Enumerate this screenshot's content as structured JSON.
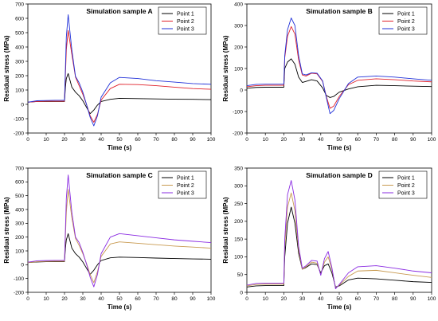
{
  "chart_data": [
    {
      "type": "line",
      "title": "Simulation sample A",
      "xlabel": "Time (s)",
      "ylabel": "Residual stress (MPa)",
      "xlim": [
        0,
        100
      ],
      "ylim": [
        -200,
        700
      ],
      "xticks": [
        "0",
        "10",
        "20",
        "30",
        "40",
        "50",
        "60",
        "70",
        "80",
        "90",
        "100"
      ],
      "yticks": [
        "-200",
        "-100",
        "0",
        "100",
        "200",
        "300",
        "400",
        "500",
        "600",
        "700"
      ],
      "legend_position": "top-right",
      "series": [
        {
          "name": "Point 1",
          "color": "#000000",
          "x": [
            0,
            5,
            10,
            15,
            20,
            20.5,
            21,
            22,
            24,
            26,
            28,
            30,
            32,
            34,
            36,
            38,
            40,
            45,
            50,
            60,
            70,
            80,
            90,
            100
          ],
          "y": [
            15,
            20,
            20,
            20,
            20,
            120,
            180,
            215,
            120,
            85,
            60,
            25,
            -20,
            -65,
            -40,
            -5,
            20,
            35,
            42,
            40,
            38,
            36,
            35,
            33
          ]
        },
        {
          "name": "Point 2",
          "color": "#e0202a",
          "x": [
            0,
            5,
            10,
            15,
            20,
            20.5,
            21,
            22,
            24,
            26,
            28,
            30,
            32,
            34,
            36,
            38,
            40,
            45,
            50,
            60,
            70,
            80,
            90,
            100
          ],
          "y": [
            15,
            20,
            22,
            22,
            22,
            200,
            380,
            515,
            350,
            190,
            130,
            70,
            0,
            -80,
            -125,
            -70,
            30,
            110,
            140,
            138,
            130,
            120,
            110,
            105
          ]
        },
        {
          "name": "Point 3",
          "color": "#2030d8",
          "x": [
            0,
            5,
            10,
            15,
            20,
            20.5,
            21,
            22,
            24,
            26,
            28,
            30,
            32,
            34,
            36,
            38,
            40,
            45,
            50,
            60,
            70,
            80,
            90,
            100
          ],
          "y": [
            15,
            25,
            27,
            28,
            28,
            250,
            470,
            625,
            380,
            195,
            150,
            85,
            0,
            -90,
            -150,
            -80,
            50,
            150,
            188,
            180,
            165,
            155,
            145,
            140
          ]
        }
      ]
    },
    {
      "type": "line",
      "title": "Simulation sample B",
      "xlabel": "Time (s)",
      "ylabel": "Residual stress (MPa)",
      "xlim": [
        0,
        100
      ],
      "ylim": [
        -200,
        400
      ],
      "xticks": [
        "0",
        "10",
        "20",
        "30",
        "40",
        "50",
        "60",
        "70",
        "80",
        "90",
        "100"
      ],
      "yticks": [
        "-200",
        "-100",
        "0",
        "100",
        "200",
        "300",
        "400"
      ],
      "legend_position": "top-right",
      "series": [
        {
          "name": "Point 1",
          "color": "#000000",
          "x": [
            0,
            5,
            10,
            15,
            20,
            20.5,
            22,
            24,
            26,
            28,
            30,
            32,
            35,
            38,
            41,
            43,
            45,
            47,
            50,
            55,
            60,
            70,
            80,
            90,
            100
          ],
          "y": [
            8,
            12,
            13,
            13,
            13,
            100,
            130,
            145,
            120,
            60,
            35,
            40,
            48,
            42,
            10,
            -25,
            -35,
            -30,
            -10,
            5,
            15,
            22,
            20,
            18,
            16
          ]
        },
        {
          "name": "Point 2",
          "color": "#e0202a",
          "x": [
            0,
            5,
            10,
            15,
            20,
            20.5,
            22,
            24,
            26,
            28,
            30,
            32,
            35,
            38,
            41,
            43,
            45,
            47,
            50,
            55,
            60,
            70,
            80,
            90,
            100
          ],
          "y": [
            15,
            20,
            22,
            22,
            22,
            150,
            250,
            295,
            260,
            140,
            70,
            65,
            78,
            75,
            40,
            -30,
            -85,
            -75,
            -30,
            25,
            45,
            52,
            48,
            42,
            38
          ]
        },
        {
          "name": "Point 3",
          "color": "#2030d8",
          "x": [
            0,
            5,
            10,
            15,
            20,
            20.5,
            22,
            24,
            26,
            28,
            30,
            32,
            35,
            38,
            41,
            43,
            45,
            47,
            50,
            55,
            60,
            70,
            80,
            90,
            100
          ],
          "y": [
            20,
            26,
            27,
            27,
            27,
            160,
            280,
            335,
            300,
            160,
            75,
            70,
            80,
            78,
            42,
            -35,
            -110,
            -95,
            -40,
            30,
            60,
            65,
            60,
            52,
            45
          ]
        }
      ]
    },
    {
      "type": "line",
      "title": "Simulation sample C",
      "xlabel": "Time (s)",
      "ylabel": "Residual stress (MPa)",
      "xlim": [
        0,
        100
      ],
      "ylim": [
        -200,
        700
      ],
      "xticks": [
        "0",
        "10",
        "20",
        "30",
        "40",
        "50",
        "60",
        "70",
        "80",
        "90",
        "100"
      ],
      "yticks": [
        "-200",
        "-100",
        "0",
        "100",
        "200",
        "300",
        "400",
        "500",
        "600",
        "700"
      ],
      "legend_position": "top-right",
      "series": [
        {
          "name": "Point 1",
          "color": "#000000",
          "x": [
            0,
            5,
            10,
            15,
            20,
            20.5,
            21,
            22,
            24,
            26,
            28,
            30,
            32,
            34,
            36,
            38,
            40,
            45,
            50,
            60,
            70,
            80,
            90,
            100
          ],
          "y": [
            15,
            20,
            22,
            22,
            22,
            120,
            180,
            225,
            120,
            80,
            55,
            20,
            -25,
            -70,
            -40,
            0,
            30,
            50,
            55,
            52,
            48,
            45,
            42,
            40
          ]
        },
        {
          "name": "Point 2",
          "color": "#c89a50",
          "x": [
            0,
            5,
            10,
            15,
            20,
            20.5,
            21,
            22,
            24,
            26,
            28,
            30,
            32,
            34,
            36,
            38,
            40,
            45,
            50,
            60,
            70,
            80,
            90,
            100
          ],
          "y": [
            15,
            22,
            24,
            25,
            25,
            200,
            380,
            545,
            340,
            190,
            140,
            80,
            10,
            -70,
            -130,
            -50,
            60,
            150,
            165,
            155,
            145,
            135,
            128,
            120
          ]
        },
        {
          "name": "Point 3",
          "color": "#8a2be2",
          "x": [
            0,
            5,
            10,
            15,
            20,
            20.5,
            21,
            22,
            24,
            26,
            28,
            30,
            32,
            34,
            36,
            38,
            40,
            45,
            50,
            60,
            70,
            80,
            90,
            100
          ],
          "y": [
            18,
            28,
            30,
            31,
            31,
            250,
            480,
            650,
            380,
            200,
            160,
            90,
            5,
            -90,
            -160,
            -70,
            80,
            200,
            225,
            210,
            195,
            180,
            170,
            160
          ]
        }
      ]
    },
    {
      "type": "line",
      "title": "Simulation sample D",
      "xlabel": "Time (s)",
      "ylabel": "Residual stress (MPa)",
      "xlim": [
        0,
        100
      ],
      "ylim": [
        0,
        350
      ],
      "xticks": [
        "0",
        "10",
        "20",
        "30",
        "40",
        "50",
        "60",
        "70",
        "80",
        "90",
        "100"
      ],
      "yticks": [
        "0",
        "50",
        "100",
        "150",
        "200",
        "250",
        "300",
        "350"
      ],
      "legend_position": "top-right",
      "series": [
        {
          "name": "Point 1",
          "color": "#000000",
          "x": [
            0,
            5,
            10,
            15,
            20,
            20.5,
            22,
            24,
            26,
            28,
            30,
            32,
            35,
            38,
            40,
            42,
            44,
            46,
            48,
            50,
            55,
            60,
            70,
            80,
            90,
            100
          ],
          "y": [
            15,
            18,
            19,
            19,
            19,
            100,
            195,
            240,
            195,
            110,
            65,
            70,
            80,
            78,
            55,
            75,
            80,
            55,
            15,
            18,
            35,
            40,
            38,
            34,
            30,
            28
          ]
        },
        {
          "name": "Point 2",
          "color": "#c89a50",
          "x": [
            0,
            5,
            10,
            15,
            20,
            20.5,
            22,
            24,
            26,
            28,
            30,
            32,
            35,
            38,
            40,
            42,
            44,
            46,
            48,
            50,
            55,
            60,
            70,
            80,
            90,
            100
          ],
          "y": [
            18,
            22,
            23,
            23,
            23,
            130,
            240,
            280,
            230,
            120,
            65,
            72,
            85,
            82,
            50,
            85,
            100,
            65,
            12,
            20,
            45,
            60,
            62,
            55,
            48,
            42
          ]
        },
        {
          "name": "Point 3",
          "color": "#8a2be2",
          "x": [
            0,
            5,
            10,
            15,
            20,
            20.5,
            22,
            24,
            26,
            28,
            30,
            32,
            35,
            38,
            40,
            42,
            44,
            46,
            48,
            50,
            55,
            60,
            70,
            80,
            90,
            100
          ],
          "y": [
            20,
            25,
            26,
            26,
            26,
            150,
            275,
            315,
            260,
            130,
            68,
            75,
            90,
            88,
            48,
            95,
            115,
            70,
            10,
            22,
            55,
            72,
            75,
            68,
            60,
            55
          ]
        }
      ]
    }
  ]
}
